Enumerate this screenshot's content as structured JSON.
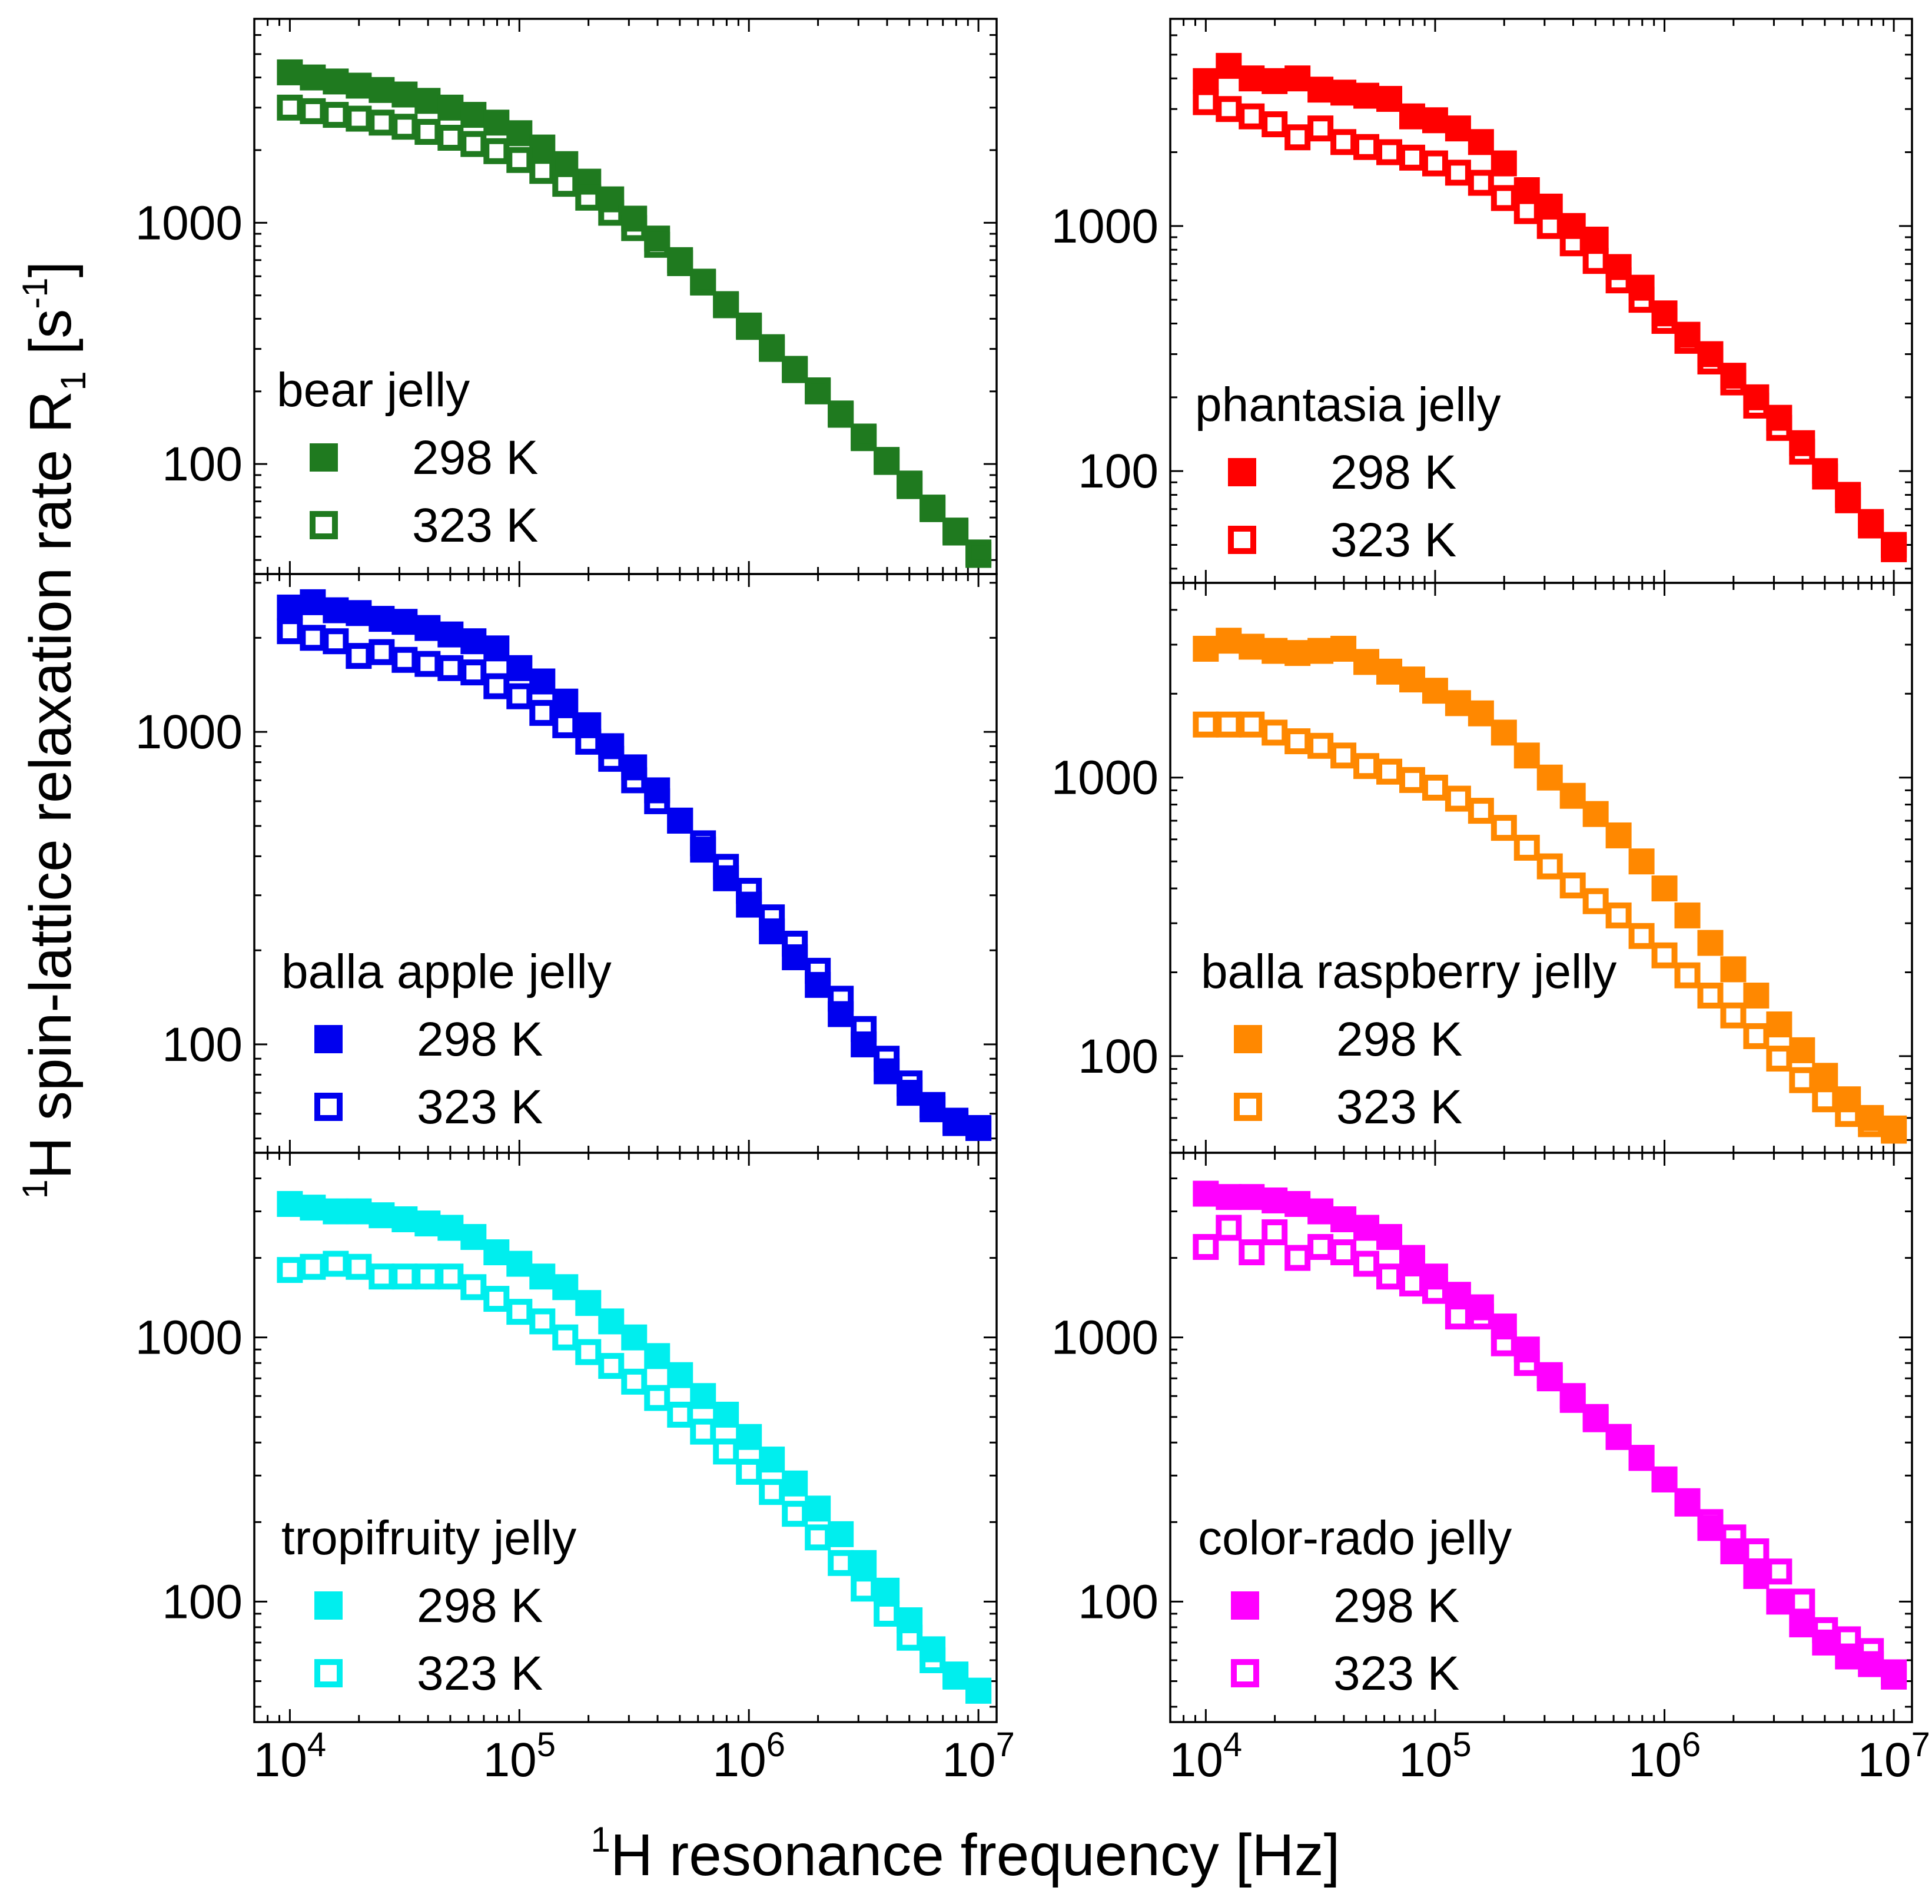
{
  "figure": {
    "y_label": {
      "sup": "1",
      "main": "H spin-lattice relaxation rate R",
      "sub": "1",
      "unit_open": " [s",
      "unit_sup": "-1",
      "unit_close": "]"
    },
    "x_label": {
      "sup": "1",
      "main": "H resonance frequency [Hz]"
    },
    "x_tick_labels": [
      {
        "base": "10",
        "exp": "4"
      },
      {
        "base": "10",
        "exp": "5"
      },
      {
        "base": "10",
        "exp": "6"
      },
      {
        "base": "10",
        "exp": "7"
      }
    ],
    "y_tick_labels": [
      "1000",
      "100"
    ],
    "temperature_labels": [
      "298 K",
      "323 K"
    ]
  },
  "colors": {
    "bear": "#1f7a1f",
    "phantasia": "#ff0000",
    "apple": "#0000ee",
    "raspberry": "#ff8800",
    "tropifruity": "#00eeee",
    "colorrado": "#ff00ff"
  },
  "chart_data": [
    {
      "type": "scatter",
      "title": "bear jelly",
      "color": "#1f7a1f",
      "xscale": "log",
      "yscale": "log",
      "xlim": [
        7000,
        12000000
      ],
      "ylim": [
        35,
        7000
      ],
      "x": [
        10000,
        12589,
        15849,
        19953,
        25119,
        31623,
        39811,
        50119,
        63096,
        79433,
        100000,
        125893,
        158489,
        199526,
        251189,
        316228,
        398107,
        501187,
        630957,
        794328,
        1000000,
        1258925,
        1584893,
        1995262,
        2511886,
        3162278,
        3981072,
        5011872,
        6309573,
        7943282,
        10000000
      ],
      "series": [
        {
          "name": "298 K",
          "marker": "filled-square",
          "values": [
            4200,
            4000,
            3850,
            3700,
            3550,
            3400,
            3200,
            3000,
            2800,
            2600,
            2350,
            2050,
            1750,
            1480,
            1250,
            1040,
            860,
            700,
            570,
            455,
            370,
            300,
            245,
            200,
            160,
            128,
            102,
            81,
            65,
            52,
            42
          ]
        },
        {
          "name": "323 K",
          "marker": "open-square",
          "values": [
            3000,
            2900,
            2800,
            2700,
            2600,
            2500,
            2380,
            2250,
            2120,
            1980,
            1820,
            1640,
            1450,
            1270,
            1100,
            950,
            810,
            680,
            565,
            460,
            375,
            305,
            248,
            202,
            162,
            130,
            104,
            83,
            66,
            53,
            43
          ]
        }
      ]
    },
    {
      "type": "scatter",
      "title": "phantasia jelly",
      "color": "#ff0000",
      "xscale": "log",
      "yscale": "log",
      "xlim": [
        7000,
        12000000
      ],
      "ylim": [
        35,
        7000
      ],
      "x": [
        10000,
        12589,
        15849,
        19953,
        25119,
        31623,
        39811,
        50119,
        63096,
        79433,
        100000,
        125893,
        158489,
        199526,
        251189,
        316228,
        398107,
        501187,
        630957,
        794328,
        1000000,
        1258925,
        1584893,
        1995262,
        2511886,
        3162278,
        3981072,
        5011872,
        6309573,
        7943282,
        10000000
      ],
      "series": [
        {
          "name": "298 K",
          "marker": "filled-square",
          "values": [
            3900,
            4500,
            4000,
            3900,
            4000,
            3600,
            3500,
            3400,
            3300,
            2800,
            2700,
            2500,
            2200,
            1800,
            1400,
            1200,
            1000,
            880,
            680,
            560,
            440,
            360,
            300,
            245,
            200,
            165,
            130,
            100,
            80,
            62,
            50
          ]
        },
        {
          "name": "323 K",
          "marker": "open-square",
          "values": [
            3200,
            3000,
            2800,
            2600,
            2300,
            2500,
            2200,
            2100,
            2000,
            1900,
            1800,
            1650,
            1500,
            1300,
            1150,
            1000,
            850,
            720,
            600,
            500,
            410,
            340,
            280,
            230,
            185,
            150,
            120,
            95,
            76,
            60,
            48
          ]
        }
      ]
    },
    {
      "type": "scatter",
      "title": "balla apple jelly",
      "color": "#0000ee",
      "xscale": "log",
      "yscale": "log",
      "xlim": [
        7000,
        12000000
      ],
      "ylim": [
        45,
        3200
      ],
      "x": [
        10000,
        12589,
        15849,
        19953,
        25119,
        31623,
        39811,
        50119,
        63096,
        79433,
        100000,
        125893,
        158489,
        199526,
        251189,
        316228,
        398107,
        501187,
        630957,
        794328,
        1000000,
        1258925,
        1584893,
        1995262,
        2511886,
        3162278,
        3981072,
        5011872,
        6309573,
        7943282,
        10000000
      ],
      "series": [
        {
          "name": "298 K",
          "marker": "filled-square",
          "values": [
            2500,
            2600,
            2450,
            2400,
            2300,
            2250,
            2150,
            2050,
            1950,
            1850,
            1600,
            1450,
            1250,
            1050,
            900,
            770,
            650,
            520,
            420,
            340,
            280,
            230,
            190,
            155,
            125,
            100,
            82,
            70,
            62,
            56,
            54
          ]
        },
        {
          "name": "323 K",
          "marker": "open-square",
          "values": [
            2100,
            2000,
            1950,
            1750,
            1800,
            1700,
            1650,
            1600,
            1550,
            1400,
            1300,
            1150,
            1050,
            930,
            820,
            700,
            600,
            520,
            440,
            370,
            310,
            255,
            210,
            172,
            140,
            112,
            90,
            75,
            64,
            57,
            54
          ]
        }
      ]
    },
    {
      "type": "scatter",
      "title": "balla raspberry jelly",
      "color": "#ff8800",
      "xscale": "log",
      "yscale": "log",
      "xlim": [
        7000,
        12000000
      ],
      "ylim": [
        45,
        5000
      ],
      "x": [
        10000,
        12589,
        15849,
        19953,
        25119,
        31623,
        39811,
        50119,
        63096,
        79433,
        100000,
        125893,
        158489,
        199526,
        251189,
        316228,
        398107,
        501187,
        630957,
        794328,
        1000000,
        1258925,
        1584893,
        1995262,
        2511886,
        3162278,
        3981072,
        5011872,
        6309573,
        7943282,
        10000000
      ],
      "series": [
        {
          "name": "298 K",
          "marker": "filled-square",
          "values": [
            2900,
            3100,
            2950,
            2850,
            2800,
            2850,
            2900,
            2600,
            2400,
            2250,
            2050,
            1850,
            1700,
            1450,
            1200,
            1000,
            860,
            740,
            620,
            500,
            400,
            320,
            255,
            205,
            165,
            130,
            105,
            85,
            70,
            60,
            55
          ]
        },
        {
          "name": "323 K",
          "marker": "open-square",
          "values": [
            1550,
            1550,
            1550,
            1450,
            1350,
            1300,
            1200,
            1100,
            1050,
            980,
            920,
            840,
            760,
            660,
            560,
            480,
            410,
            360,
            320,
            270,
            230,
            195,
            165,
            140,
            118,
            98,
            82,
            70,
            62,
            57,
            54
          ]
        }
      ]
    },
    {
      "type": "scatter",
      "title": "tropifruity jelly",
      "color": "#00eeee",
      "xscale": "log",
      "yscale": "log",
      "xlim": [
        7000,
        12000000
      ],
      "ylim": [
        35,
        5000
      ],
      "x": [
        10000,
        12589,
        15849,
        19953,
        25119,
        31623,
        39811,
        50119,
        63096,
        79433,
        100000,
        125893,
        158489,
        199526,
        251189,
        316228,
        398107,
        501187,
        630957,
        794328,
        1000000,
        1258925,
        1584893,
        1995262,
        2511886,
        3162278,
        3981072,
        5011872,
        6309573,
        7943282,
        10000000
      ],
      "series": [
        {
          "name": "298 K",
          "marker": "filled-square",
          "values": [
            3200,
            3100,
            3000,
            3000,
            2900,
            2800,
            2700,
            2600,
            2400,
            2100,
            1900,
            1700,
            1550,
            1350,
            1150,
            1000,
            850,
            720,
            600,
            510,
            420,
            345,
            280,
            225,
            180,
            140,
            110,
            85,
            66,
            53,
            46
          ]
        },
        {
          "name": "323 K",
          "marker": "open-square",
          "values": [
            1800,
            1850,
            1900,
            1850,
            1700,
            1700,
            1700,
            1700,
            1550,
            1400,
            1250,
            1150,
            1000,
            880,
            780,
            680,
            590,
            510,
            440,
            370,
            310,
            260,
            215,
            175,
            140,
            112,
            90,
            73,
            60,
            52,
            46
          ]
        }
      ]
    },
    {
      "type": "scatter",
      "title": "color-rado jelly",
      "color": "#ff00ff",
      "xscale": "log",
      "yscale": "log",
      "xlim": [
        7000,
        12000000
      ],
      "ylim": [
        35,
        5000
      ],
      "x": [
        10000,
        12589,
        15849,
        19953,
        25119,
        31623,
        39811,
        50119,
        63096,
        79433,
        100000,
        125893,
        158489,
        199526,
        251189,
        316228,
        398107,
        501187,
        630957,
        794328,
        1000000,
        1258925,
        1584893,
        1995262,
        2511886,
        3162278,
        3981072,
        5011872,
        6309573,
        7943282,
        10000000
      ],
      "series": [
        {
          "name": "298 K",
          "marker": "filled-square",
          "values": [
            3500,
            3400,
            3400,
            3300,
            3200,
            3000,
            2800,
            2600,
            2400,
            2000,
            1700,
            1450,
            1300,
            1100,
            900,
            720,
            600,
            500,
            420,
            350,
            290,
            235,
            190,
            155,
            125,
            100,
            82,
            70,
            62,
            58,
            54
          ]
        },
        {
          "name": "323 K",
          "marker": "open-square",
          "values": [
            2200,
            2600,
            2100,
            2500,
            2000,
            2200,
            2100,
            1900,
            1700,
            1600,
            1500,
            1200,
            1200,
            950,
            800,
            700,
            580,
            490,
            420,
            350,
            290,
            240,
            200,
            175,
            155,
            130,
            100,
            78,
            72,
            65,
            52
          ]
        }
      ]
    }
  ]
}
